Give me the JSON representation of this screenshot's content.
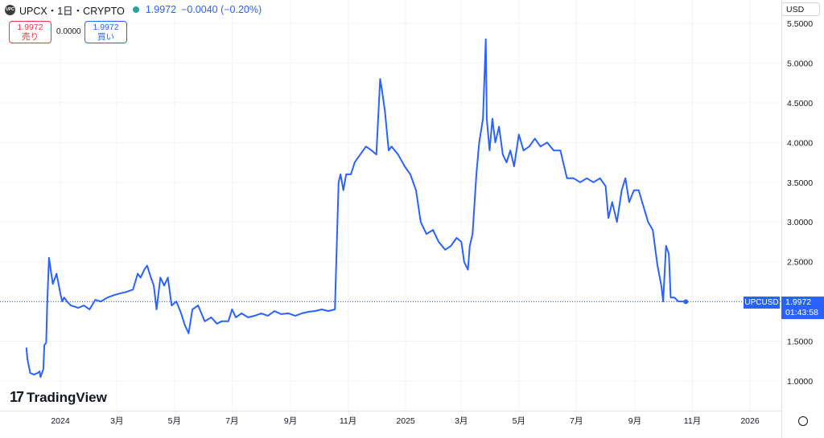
{
  "header": {
    "symbol": "UPCX・1日・CRYPTO",
    "logo_text": "UPC",
    "last": "1.9972",
    "change": "−0.0040 (−0.20%)",
    "status_color": "#26a69a"
  },
  "quote": {
    "sell_price": "1.9972",
    "sell_label": "売り",
    "spread": "0.0000",
    "buy_price": "1.9972",
    "buy_label": "買い"
  },
  "currency": "USD",
  "branding": {
    "mark": "17",
    "name": "TradingView"
  },
  "price_tag": {
    "symbol": "UPCUSD",
    "price": "1.9972",
    "countdown": "01:43:58"
  },
  "colors": {
    "line": "#2962ff",
    "sell": "#f23645",
    "buy": "#2962ff",
    "grid": "#f0f3fa"
  },
  "chart_data": {
    "type": "line",
    "title": "",
    "xlabel": "",
    "ylabel": "",
    "ylim": [
      0.52,
      5.5
    ],
    "y_ticks": [
      1.0,
      1.5,
      2.0,
      2.5,
      3.0,
      3.5,
      4.0,
      4.5,
      5.0,
      5.5
    ],
    "y_tick_labels": [
      "1.0000",
      "1.5000",
      "2.0000",
      "2.5000",
      "3.0000",
      "3.5000",
      "4.0000",
      "4.5000",
      "5.0000",
      "5.5000"
    ],
    "x_ticks": [
      {
        "date": "2024-01-01",
        "label": "2024"
      },
      {
        "date": "2024-03-01",
        "label": "3月"
      },
      {
        "date": "2024-05-01",
        "label": "5月"
      },
      {
        "date": "2024-07-01",
        "label": "7月"
      },
      {
        "date": "2024-09-01",
        "label": "9月"
      },
      {
        "date": "2024-11-01",
        "label": "11月"
      },
      {
        "date": "2025-01-01",
        "label": "2025"
      },
      {
        "date": "2025-03-01",
        "label": "3月"
      },
      {
        "date": "2025-05-01",
        "label": "5月"
      },
      {
        "date": "2025-07-01",
        "label": "7月"
      },
      {
        "date": "2025-09-01",
        "label": "9月"
      },
      {
        "date": "2025-11-01",
        "label": "11月"
      },
      {
        "date": "2026-01-01",
        "label": "2026"
      }
    ],
    "last_value": 1.9972,
    "series": [
      {
        "x": [
          "2023-11-26",
          "2023-11-27",
          "2023-11-30",
          "2023-12-04",
          "2023-12-08",
          "2023-12-10",
          "2023-12-11",
          "2023-12-14",
          "2023-12-15",
          "2023-12-17",
          "2023-12-18",
          "2023-12-20",
          "2023-12-24",
          "2023-12-28",
          "2024-01-01",
          "2024-01-03",
          "2024-01-05",
          "2024-01-08",
          "2024-01-12",
          "2024-01-20",
          "2024-01-26",
          "2024-02-01",
          "2024-02-07",
          "2024-02-13",
          "2024-02-20",
          "2024-02-27",
          "2024-03-04",
          "2024-03-11",
          "2024-03-18",
          "2024-03-23",
          "2024-03-26",
          "2024-03-30",
          "2024-04-02",
          "2024-04-06",
          "2024-04-09",
          "2024-04-12",
          "2024-04-16",
          "2024-04-20",
          "2024-04-24",
          "2024-04-28",
          "2024-05-03",
          "2024-05-08",
          "2024-05-12",
          "2024-05-16",
          "2024-05-20",
          "2024-05-26",
          "2024-06-02",
          "2024-06-09",
          "2024-06-15",
          "2024-06-20",
          "2024-06-27",
          "2024-07-01",
          "2024-07-05",
          "2024-07-11",
          "2024-07-18",
          "2024-07-25",
          "2024-08-01",
          "2024-08-08",
          "2024-08-15",
          "2024-08-22",
          "2024-08-30",
          "2024-09-06",
          "2024-09-13",
          "2024-09-20",
          "2024-09-27",
          "2024-10-04",
          "2024-10-11",
          "2024-10-18",
          "2024-10-22",
          "2024-10-24",
          "2024-10-27",
          "2024-10-30",
          "2024-11-04",
          "2024-11-08",
          "2024-11-14",
          "2024-11-20",
          "2024-11-26",
          "2024-12-01",
          "2024-12-05",
          "2024-12-07",
          "2024-12-10",
          "2024-12-14",
          "2024-12-17",
          "2024-12-24",
          "2024-12-31",
          "2025-01-06",
          "2025-01-12",
          "2025-01-17",
          "2025-01-23",
          "2025-01-30",
          "2025-02-05",
          "2025-02-12",
          "2025-02-18",
          "2025-02-24",
          "2025-03-01",
          "2025-03-04",
          "2025-03-08",
          "2025-03-10",
          "2025-03-13",
          "2025-03-17",
          "2025-03-20",
          "2025-03-24",
          "2025-03-27",
          "2025-03-28",
          "2025-03-31",
          "2025-04-03",
          "2025-04-06",
          "2025-04-10",
          "2025-04-14",
          "2025-04-18",
          "2025-04-22",
          "2025-04-26",
          "2025-05-01",
          "2025-05-06",
          "2025-05-12",
          "2025-05-18",
          "2025-05-24",
          "2025-05-31",
          "2025-06-07",
          "2025-06-14",
          "2025-06-21",
          "2025-06-28",
          "2025-07-05",
          "2025-07-12",
          "2025-07-19",
          "2025-07-26",
          "2025-08-01",
          "2025-08-04",
          "2025-08-08",
          "2025-08-13",
          "2025-08-18",
          "2025-08-22",
          "2025-08-26",
          "2025-08-31",
          "2025-09-05",
          "2025-09-10",
          "2025-09-15",
          "2025-09-20",
          "2025-09-25",
          "2025-09-29",
          "2025-10-01",
          "2025-10-04",
          "2025-10-07",
          "2025-10-09",
          "2025-10-13",
          "2025-10-17",
          "2025-10-21",
          "2025-10-25"
        ],
        "y": [
          1.42,
          1.28,
          1.1,
          1.08,
          1.1,
          1.12,
          1.05,
          1.15,
          1.45,
          1.48,
          1.95,
          2.55,
          2.22,
          2.35,
          2.1,
          2.0,
          2.05,
          2.0,
          1.95,
          1.92,
          1.95,
          1.9,
          2.02,
          2.0,
          2.05,
          2.08,
          2.1,
          2.12,
          2.15,
          2.35,
          2.3,
          2.4,
          2.45,
          2.3,
          2.2,
          1.9,
          2.3,
          2.2,
          2.3,
          1.95,
          2.0,
          1.85,
          1.7,
          1.6,
          1.9,
          1.95,
          1.75,
          1.8,
          1.72,
          1.75,
          1.75,
          1.9,
          1.8,
          1.85,
          1.8,
          1.82,
          1.85,
          1.82,
          1.88,
          1.84,
          1.85,
          1.82,
          1.85,
          1.87,
          1.88,
          1.9,
          1.88,
          1.9,
          3.5,
          3.6,
          3.4,
          3.6,
          3.6,
          3.75,
          3.85,
          3.95,
          3.9,
          3.85,
          4.8,
          4.65,
          4.4,
          3.9,
          3.95,
          3.85,
          3.7,
          3.6,
          3.4,
          3.0,
          2.85,
          2.9,
          2.75,
          2.65,
          2.7,
          2.8,
          2.75,
          2.5,
          2.4,
          2.7,
          2.85,
          3.6,
          4.0,
          4.3,
          5.3,
          4.3,
          3.9,
          4.3,
          4.0,
          4.2,
          3.85,
          3.75,
          3.9,
          3.7,
          4.1,
          3.9,
          3.95,
          4.05,
          3.95,
          4.0,
          3.9,
          3.9,
          3.55,
          3.55,
          3.5,
          3.55,
          3.5,
          3.55,
          3.45,
          3.05,
          3.25,
          3.0,
          3.4,
          3.55,
          3.25,
          3.4,
          3.4,
          3.2,
          3.0,
          2.9,
          2.45,
          2.2,
          2.0,
          2.7,
          2.6,
          2.05,
          2.05,
          2.0,
          2.0,
          1.9972
        ]
      }
    ]
  }
}
